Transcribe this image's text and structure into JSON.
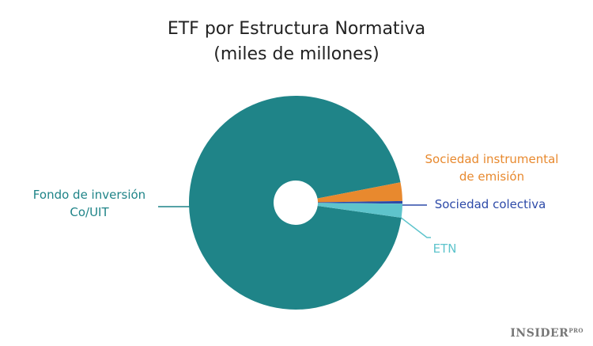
{
  "chart_data": {
    "type": "pie",
    "title": "ETF por Estructura Normativa",
    "subtitle": "(miles de millones)",
    "categories": [
      "Fondo de inversión Co/UIT",
      "Sociedad instrumental de emisión",
      "Sociedad colectiva",
      "ETN"
    ],
    "values": [
      94.7,
      2.8,
      0.4,
      2.1
    ],
    "colors": [
      "#1f8488",
      "#e8892e",
      "#2d4aa8",
      "#5ec4cc"
    ],
    "brand": "INSIDER",
    "brand_tag": "PRO"
  }
}
